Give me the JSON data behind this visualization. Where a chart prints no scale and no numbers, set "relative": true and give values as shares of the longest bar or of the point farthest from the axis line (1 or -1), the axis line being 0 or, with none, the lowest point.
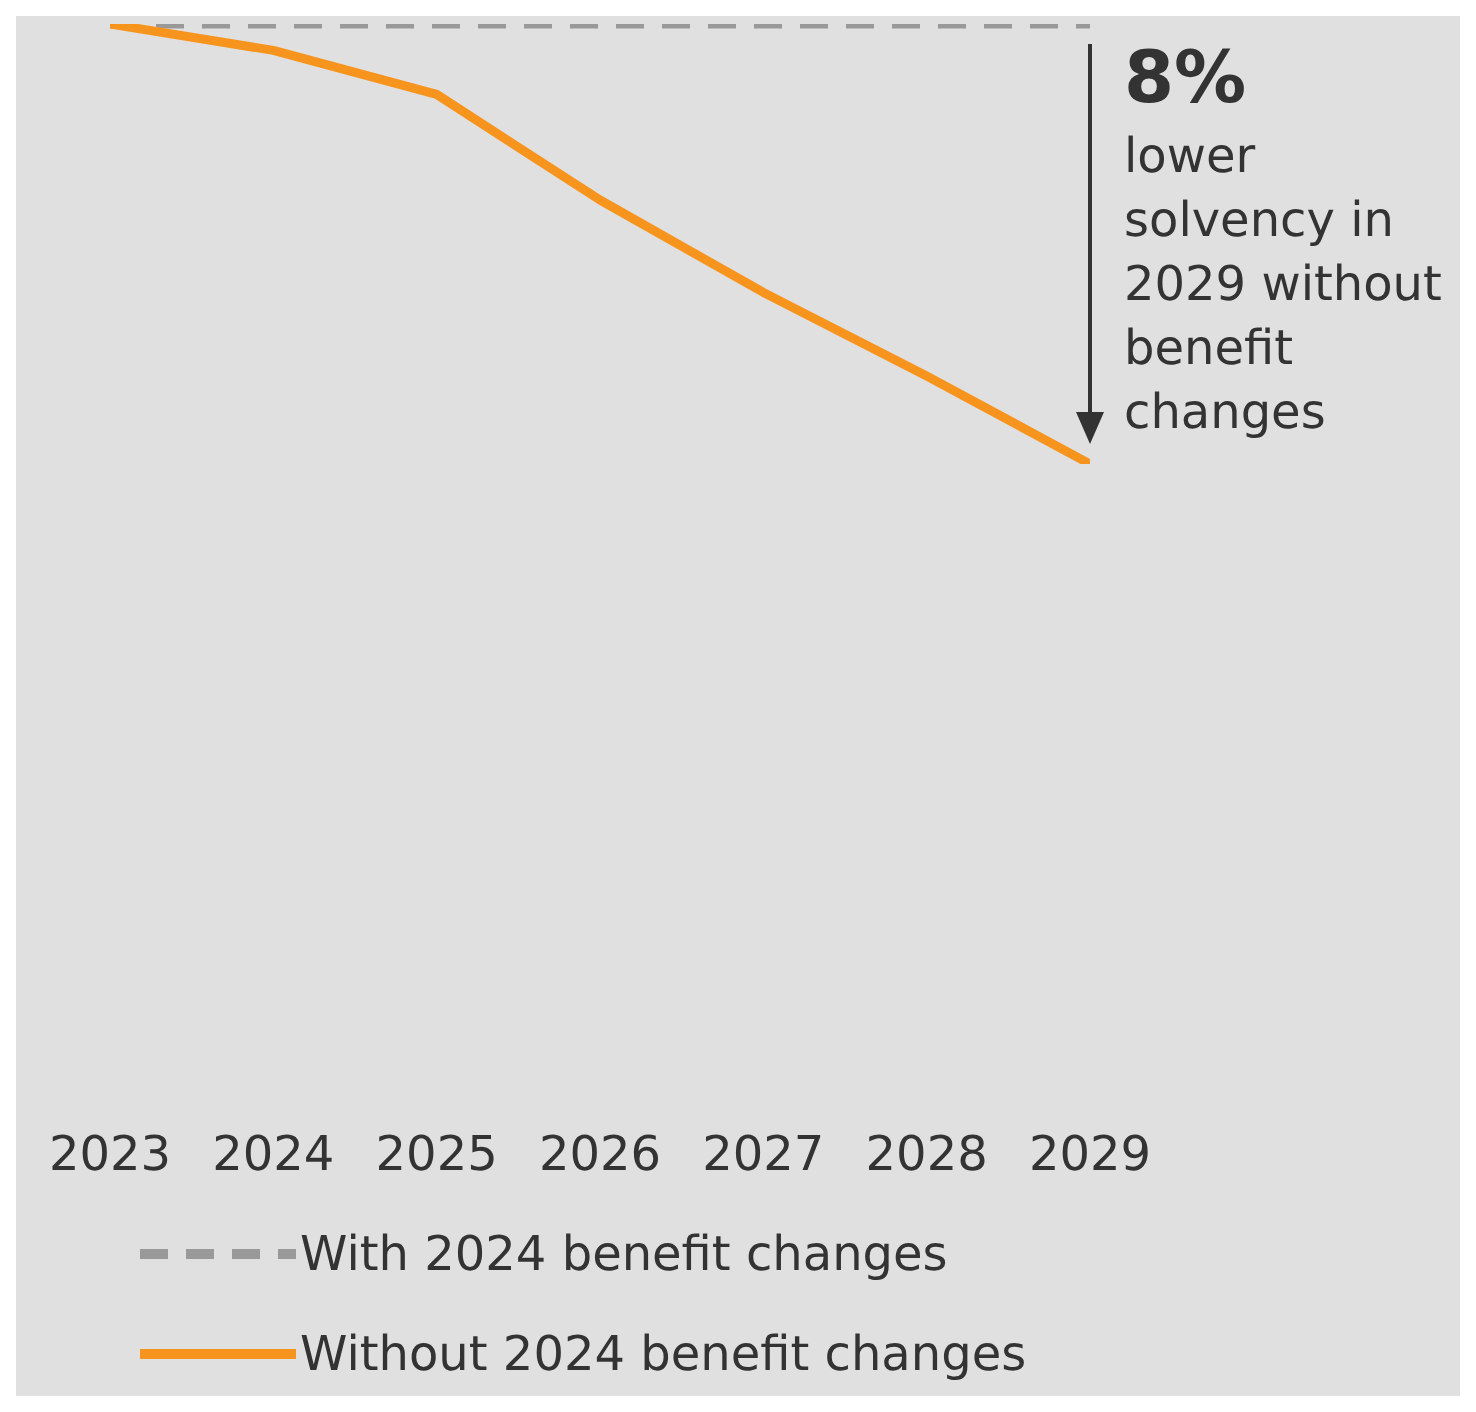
{
  "chart_data": {
    "type": "line",
    "relative": true,
    "categories": [
      "2023",
      "2024",
      "2025",
      "2026",
      "2027",
      "2028",
      "2029"
    ],
    "series": [
      {
        "name": "With 2024 benefit changes",
        "color": "#999999",
        "line_style": "dashed",
        "values": [
          1,
          1,
          1,
          1,
          1,
          1,
          1
        ]
      },
      {
        "name": "Without 2024 benefit changes",
        "color": "#f7941d",
        "line_style": "solid",
        "values": [
          1,
          0.94,
          0.84,
          0.6,
          0.39,
          0.2,
          0
        ]
      }
    ],
    "annotations": [
      "8%",
      "lower solvency in 2029 without benefit changes"
    ],
    "legend": "bottom",
    "marker": "none"
  }
}
